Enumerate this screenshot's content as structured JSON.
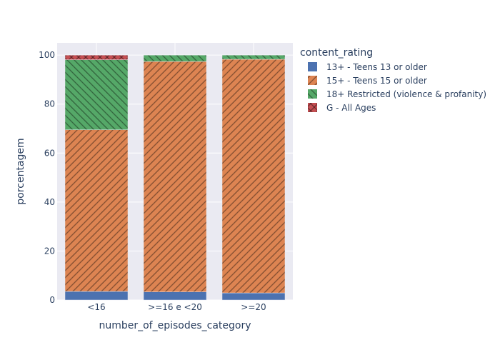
{
  "chart_data": {
    "type": "bar",
    "stacked": true,
    "categories": [
      "<16",
      ">=16 e <20",
      ">=20"
    ],
    "xlabel": "number_of_episodes_category",
    "ylabel": "porcentagem",
    "ylim": [
      0,
      105
    ],
    "yticks": [
      0,
      20,
      40,
      60,
      80,
      100
    ],
    "grid": true,
    "legend_title": "content_rating",
    "legend_position": "right",
    "series": [
      {
        "name": "13+ - Teens 13 or older",
        "values": [
          3.5,
          3.3,
          2.9
        ],
        "color": "#4c72b0",
        "pattern": "none"
      },
      {
        "name": "15+ - Teens 15 or older",
        "values": [
          66.0,
          94.1,
          95.4
        ],
        "color": "#dd8452",
        "pattern": "forward-diagonal"
      },
      {
        "name": "18+ Restricted (violence & profanity)",
        "values": [
          28.6,
          2.6,
          1.7
        ],
        "color": "#55a868",
        "pattern": "back-diagonal"
      },
      {
        "name": "G - All Ages",
        "values": [
          1.9,
          0,
          0
        ],
        "color": "#c44e52",
        "pattern": "cross"
      }
    ]
  }
}
